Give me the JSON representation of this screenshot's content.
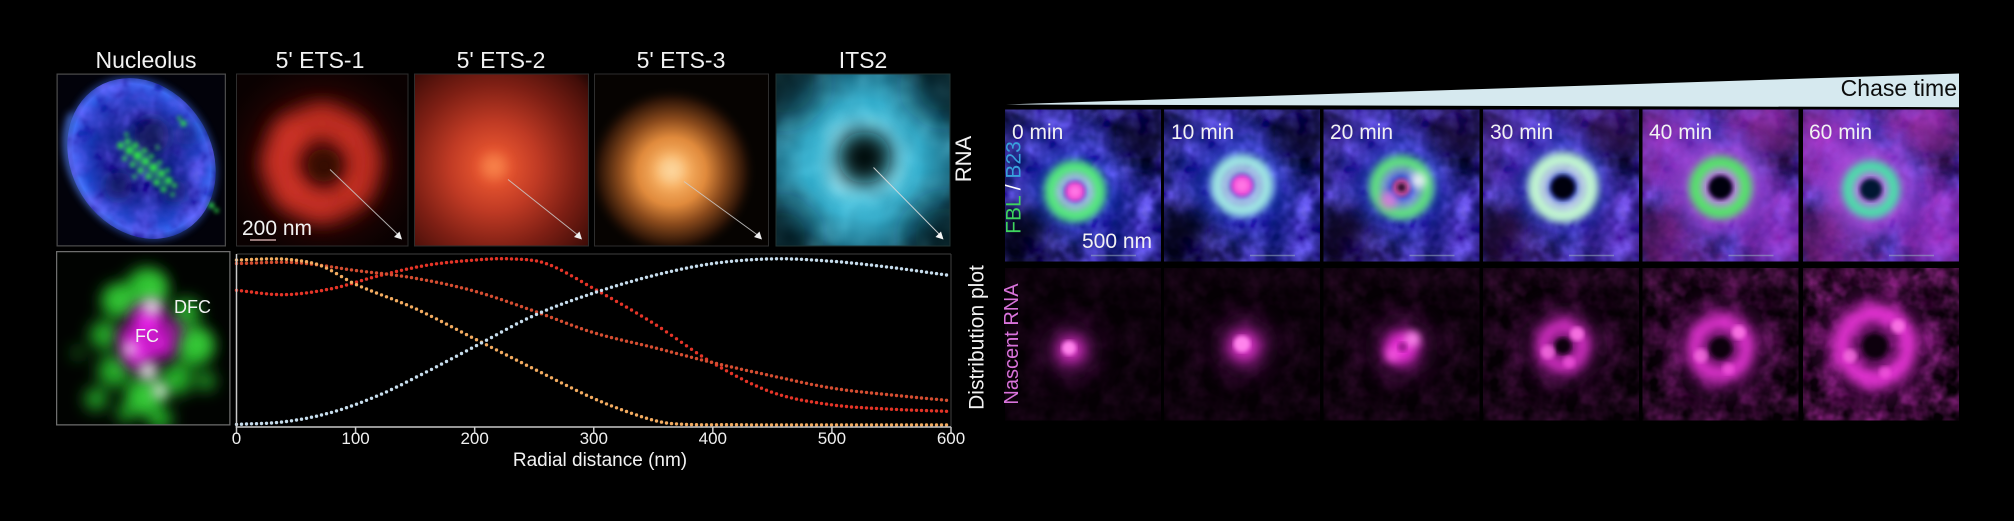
{
  "row1": {
    "titles": [
      "Nucleolus",
      "5' ETS-1",
      "5' ETS-2",
      "5' ETS-3",
      "ITS2"
    ],
    "rna_label": "RNA",
    "scalebar_label": "200 nm"
  },
  "row2": {
    "dfc_label": "DFC",
    "fc_label": "FC"
  },
  "chase": {
    "header": "Chase time",
    "times": [
      "0 min",
      "10 min",
      "20 min",
      "30 min",
      "40 min",
      "60 min"
    ],
    "fbl": "FBL",
    "slash": " / ",
    "b23": "B23",
    "scalebar_label": "500 nm",
    "nascent_label": "Nascent RNA"
  },
  "colors": {
    "fbl_green": "#3fd95e",
    "b23_blue": "#3e9fe8",
    "nascent_magenta": "#e778e7",
    "wedge_fill": "#d6e9ef",
    "wedge_text": "#0b0b0b",
    "axis": "#c8c8c8",
    "panel_border": "#4a4a4a"
  },
  "chart_data": {
    "type": "scatter",
    "title": "Distribution plot",
    "xlabel": "Radial distance (nm)",
    "ylabel": "",
    "x_range": [
      0,
      600
    ],
    "x_ticks": [
      0,
      100,
      200,
      300,
      400,
      500,
      600
    ],
    "y_range": [
      0,
      1
    ],
    "grid": false,
    "legend": "none",
    "marker": "dot",
    "series": [
      {
        "name": "5' ETS-1",
        "color": "#e43427",
        "points": [
          [
            0,
            0.79
          ],
          [
            40,
            0.765
          ],
          [
            80,
            0.8
          ],
          [
            120,
            0.875
          ],
          [
            160,
            0.935
          ],
          [
            200,
            0.965
          ],
          [
            230,
            0.972
          ],
          [
            260,
            0.945
          ],
          [
            300,
            0.8
          ],
          [
            350,
            0.6
          ],
          [
            400,
            0.37
          ],
          [
            450,
            0.2
          ],
          [
            500,
            0.128
          ],
          [
            550,
            0.103
          ],
          [
            600,
            0.09
          ]
        ]
      },
      {
        "name": "5' ETS-2",
        "color": "#d44d31",
        "points": [
          [
            0,
            0.945
          ],
          [
            50,
            0.95
          ],
          [
            100,
            0.905
          ],
          [
            150,
            0.86
          ],
          [
            200,
            0.785
          ],
          [
            250,
            0.67
          ],
          [
            300,
            0.545
          ],
          [
            350,
            0.46
          ],
          [
            400,
            0.372
          ],
          [
            450,
            0.295
          ],
          [
            500,
            0.225
          ],
          [
            550,
            0.185
          ],
          [
            600,
            0.152
          ]
        ]
      },
      {
        "name": "5' ETS-3",
        "color": "#f2ab60",
        "points": [
          [
            0,
            0.965
          ],
          [
            40,
            0.97
          ],
          [
            70,
            0.935
          ],
          [
            100,
            0.825
          ],
          [
            150,
            0.685
          ],
          [
            200,
            0.51
          ],
          [
            250,
            0.335
          ],
          [
            300,
            0.165
          ],
          [
            340,
            0.06
          ],
          [
            365,
            0.02
          ],
          [
            420,
            0.013
          ],
          [
            500,
            0.012
          ],
          [
            600,
            0.012
          ]
        ]
      },
      {
        "name": "ITS2",
        "color": "#c6dcec",
        "points": [
          [
            0,
            0.015
          ],
          [
            40,
            0.03
          ],
          [
            80,
            0.085
          ],
          [
            120,
            0.185
          ],
          [
            160,
            0.32
          ],
          [
            200,
            0.465
          ],
          [
            250,
            0.645
          ],
          [
            300,
            0.775
          ],
          [
            350,
            0.875
          ],
          [
            400,
            0.945
          ],
          [
            450,
            0.972
          ],
          [
            500,
            0.958
          ],
          [
            550,
            0.922
          ],
          [
            600,
            0.875
          ]
        ]
      }
    ]
  }
}
